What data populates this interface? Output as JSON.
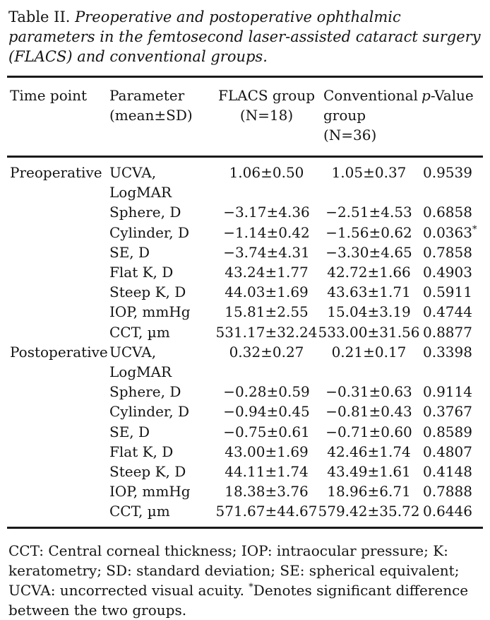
{
  "caption": {
    "label": "Table II.",
    "text": "Preoperative and postoperative ophthalmic parameters in the femtosecond laser-assisted cataract surgery (FLACS) and conventional groups."
  },
  "header": {
    "time_point": "Time point",
    "parameter_line1": "Parameter",
    "parameter_line2": "(mean±SD)",
    "flacs_line1": "FLACS group",
    "flacs_line2": "(N=18)",
    "conventional_line1": "Conventional",
    "conventional_line2": "group (N=36)",
    "p_italic": "p",
    "p_rest": "-Value"
  },
  "sections": [
    {
      "time_point": "Preoperative",
      "rows": [
        {
          "parameter": "UCVA, LogMAR",
          "flacs": "1.06±0.50",
          "conventional": "1.05±0.37",
          "p": "0.9539"
        },
        {
          "parameter": "Sphere, D",
          "flacs": "−3.17±4.36",
          "conventional": "−2.51±4.53",
          "p": "0.6858"
        },
        {
          "parameter": "Cylinder, D",
          "flacs": "−1.14±0.42",
          "conventional": "−1.56±0.62",
          "p": "0.0363",
          "p_mark": "*"
        },
        {
          "parameter": "SE, D",
          "flacs": "−3.74±4.31",
          "conventional": "−3.30±4.65",
          "p": "0.7858"
        },
        {
          "parameter": "Flat K, D",
          "flacs": "43.24±1.77",
          "conventional": "42.72±1.66",
          "p": "0.4903"
        },
        {
          "parameter": "Steep K, D",
          "flacs": "44.03±1.69",
          "conventional": "43.63±1.71",
          "p": "0.5911"
        },
        {
          "parameter": "IOP, mmHg",
          "flacs": "15.81±2.55",
          "conventional": "15.04±3.19",
          "p": "0.4744"
        },
        {
          "parameter": "CCT, µm",
          "flacs": "531.17±32.24",
          "conventional": "533.00±31.56",
          "p": "0.8877"
        }
      ]
    },
    {
      "time_point": "Postoperative",
      "rows": [
        {
          "parameter": "UCVA, LogMAR",
          "flacs": "0.32±0.27",
          "conventional": "0.21±0.17",
          "p": "0.3398"
        },
        {
          "parameter": "Sphere, D",
          "flacs": "−0.28±0.59",
          "conventional": "−0.31±0.63",
          "p": "0.9114"
        },
        {
          "parameter": "Cylinder, D",
          "flacs": "−0.94±0.45",
          "conventional": "−0.81±0.43",
          "p": "0.3767"
        },
        {
          "parameter": "SE, D",
          "flacs": "−0.75±0.61",
          "conventional": "−0.71±0.60",
          "p": "0.8589"
        },
        {
          "parameter": "Flat K, D",
          "flacs": "43.00±1.69",
          "conventional": "42.46±1.74",
          "p": "0.4807"
        },
        {
          "parameter": "Steep K, D",
          "flacs": "44.11±1.74",
          "conventional": "43.49±1.61",
          "p": "0.4148"
        },
        {
          "parameter": "IOP, mmHg",
          "flacs": "18.38±3.76",
          "conventional": "18.96±6.71",
          "p": "0.7888"
        },
        {
          "parameter": "CCT, µm",
          "flacs": "571.67±44.67",
          "conventional": "579.42±35.72",
          "p": "0.6446"
        }
      ]
    }
  ],
  "footnote": {
    "abbreviations": "CCT: Central corneal thickness; IOP: intraocular pressure; K: keratometry; SD: standard deviation; SE: spherical equivalent; UCVA: uncorrected visual acuity.",
    "significance_marker": "*",
    "significance_text": "Denotes significant difference between the two groups."
  }
}
